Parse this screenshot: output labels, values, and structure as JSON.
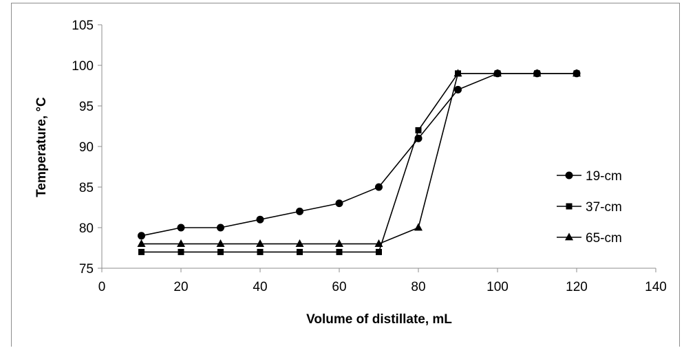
{
  "chart_data": {
    "type": "line",
    "title": "",
    "xlabel": "Volume of distillate, mL",
    "ylabel": "Temperature, °C",
    "xlim": [
      0,
      140
    ],
    "ylim": [
      75,
      105
    ],
    "xticks": [
      0,
      20,
      40,
      60,
      80,
      100,
      120,
      140
    ],
    "yticks": [
      75,
      80,
      85,
      90,
      95,
      100,
      105
    ],
    "grid": false,
    "legend_position": "right",
    "series": [
      {
        "name": "19-cm",
        "marker": "circle",
        "points": [
          [
            10,
            79
          ],
          [
            20,
            80
          ],
          [
            30,
            80
          ],
          [
            40,
            81
          ],
          [
            50,
            82
          ],
          [
            60,
            83
          ],
          [
            70,
            85
          ],
          [
            80,
            91
          ],
          [
            90,
            97
          ],
          [
            100,
            99
          ],
          [
            110,
            99
          ],
          [
            120,
            99
          ]
        ]
      },
      {
        "name": "37-cm",
        "marker": "square",
        "points": [
          [
            10,
            77
          ],
          [
            20,
            77
          ],
          [
            30,
            77
          ],
          [
            40,
            77
          ],
          [
            50,
            77
          ],
          [
            60,
            77
          ],
          [
            70,
            77
          ],
          [
            80,
            92
          ],
          [
            90,
            99
          ],
          [
            100,
            99
          ],
          [
            110,
            99
          ],
          [
            120,
            99
          ]
        ]
      },
      {
        "name": "65-cm",
        "marker": "triangle",
        "points": [
          [
            10,
            78
          ],
          [
            20,
            78
          ],
          [
            30,
            78
          ],
          [
            40,
            78
          ],
          [
            50,
            78
          ],
          [
            60,
            78
          ],
          [
            70,
            78
          ],
          [
            80,
            80
          ],
          [
            90,
            99
          ],
          [
            100,
            99
          ],
          [
            110,
            99
          ],
          [
            120,
            99
          ]
        ]
      }
    ],
    "colors": {
      "line": "#000000",
      "axis": "#8c8c8c"
    }
  }
}
